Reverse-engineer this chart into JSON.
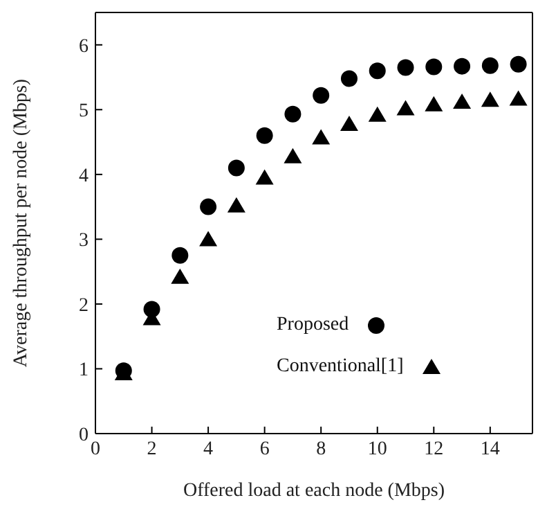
{
  "chart_data": {
    "type": "scatter",
    "xlabel": "Offered load at each node (Mbps)",
    "ylabel": "Average throughput per node (Mbps)",
    "x": [
      1,
      2,
      3,
      4,
      5,
      6,
      7,
      8,
      9,
      10,
      11,
      12,
      13,
      14,
      15
    ],
    "series": [
      {
        "name": "Proposed",
        "color": "#000000",
        "marker": "circle",
        "values": [
          0.97,
          1.92,
          2.75,
          3.5,
          4.1,
          4.6,
          4.93,
          5.22,
          5.48,
          5.6,
          5.65,
          5.66,
          5.67,
          5.68,
          5.7
        ]
      },
      {
        "name": "Conventional[1]",
        "color": "#000000",
        "marker": "triangle",
        "values": [
          0.93,
          1.78,
          2.42,
          3.0,
          3.52,
          3.95,
          4.28,
          4.57,
          4.78,
          4.92,
          5.02,
          5.08,
          5.12,
          5.15,
          5.17
        ]
      }
    ],
    "xlim": [
      0,
      15.5
    ],
    "xticks": [
      0,
      2,
      4,
      6,
      8,
      10,
      12,
      14
    ],
    "ylim": [
      0,
      6.5
    ],
    "yticks": [
      0,
      1,
      2,
      3,
      4,
      5,
      6
    ],
    "grid": false,
    "legend": "bottom right"
  }
}
